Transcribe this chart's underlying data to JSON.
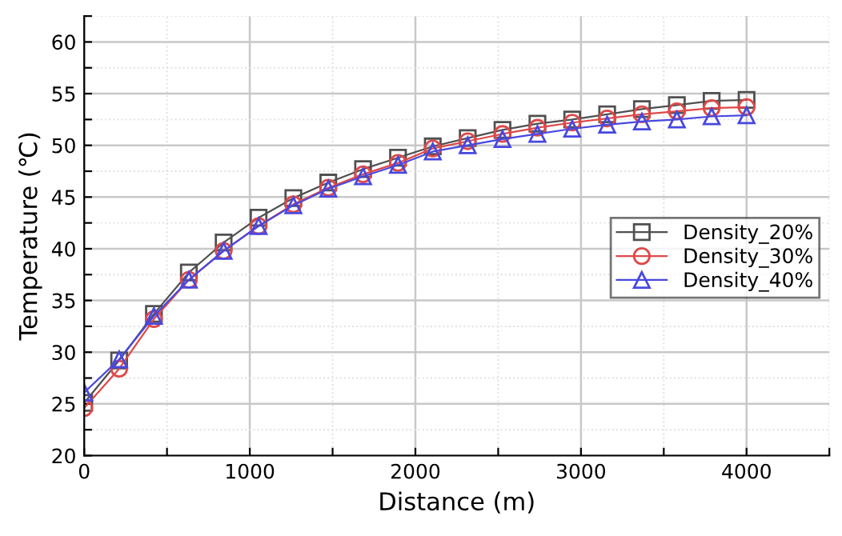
{
  "chart_data": {
    "type": "line",
    "xlabel": "Distance (m)",
    "ylabel": "Temperature (℃)",
    "x": [
      0,
      211,
      421,
      632,
      842,
      1053,
      1263,
      1474,
      1684,
      1895,
      2105,
      2316,
      2526,
      2737,
      2947,
      3158,
      3368,
      3579,
      3789,
      4000
    ],
    "series": [
      {
        "name": "Density_20%",
        "color": "#505050",
        "marker": "square",
        "values": [
          25.1,
          29.2,
          33.7,
          37.7,
          40.6,
          43.0,
          44.9,
          46.4,
          47.7,
          48.8,
          49.9,
          50.7,
          51.5,
          52.1,
          52.5,
          53.0,
          53.5,
          53.9,
          54.3,
          54.4
        ]
      },
      {
        "name": "Density_30%",
        "color": "#e04848",
        "marker": "circle",
        "values": [
          24.6,
          28.4,
          33.2,
          37.0,
          39.8,
          42.2,
          44.3,
          45.9,
          47.2,
          48.3,
          49.7,
          50.4,
          51.1,
          51.7,
          52.2,
          52.6,
          53.0,
          53.3,
          53.6,
          53.7
        ]
      },
      {
        "name": "Density_40%",
        "color": "#4848e0",
        "marker": "triangle",
        "values": [
          26.1,
          29.3,
          33.5,
          37.0,
          39.8,
          42.2,
          44.2,
          45.8,
          47.0,
          48.1,
          49.4,
          50.0,
          50.6,
          51.1,
          51.6,
          52.0,
          52.3,
          52.5,
          52.8,
          52.9
        ]
      }
    ],
    "xlim": [
      0,
      4500
    ],
    "ylim": [
      20,
      62.5
    ],
    "xticks": [
      0,
      {
        "value": 500,
        "label": null
      },
      1000,
      {
        "value": 1500,
        "label": null
      },
      2000,
      {
        "value": 2500,
        "label": null
      },
      3000,
      {
        "value": 3500,
        "label": null
      },
      4000,
      {
        "value": 4500,
        "label": null
      }
    ],
    "yticks": [
      20,
      {
        "value": 22.5,
        "label": null
      },
      25,
      {
        "value": 27.5,
        "label": null
      },
      30,
      {
        "value": 32.5,
        "label": null
      },
      35,
      {
        "value": 37.5,
        "label": null
      },
      40,
      {
        "value": 42.5,
        "label": null
      },
      45,
      {
        "value": 47.5,
        "label": null
      },
      50,
      {
        "value": 52.5,
        "label": null
      },
      55,
      {
        "value": 57.5,
        "label": null
      },
      60,
      {
        "value": 62.5,
        "label": null
      }
    ],
    "grid": true,
    "legend": "right",
    "line_style": "solid"
  }
}
